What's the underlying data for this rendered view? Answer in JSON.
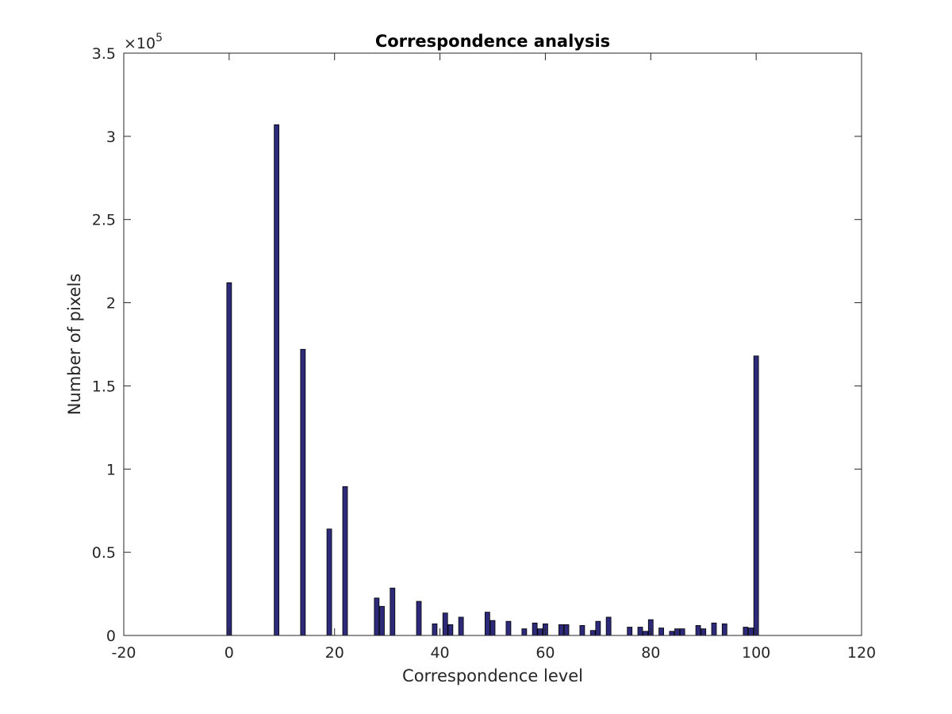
{
  "chart_data": {
    "type": "bar",
    "title": "Correspondence analysis",
    "xlabel": "Correspondence level",
    "ylabel": "Number of pixels",
    "xlim": [
      -20,
      120
    ],
    "ylim": [
      0,
      350000
    ],
    "xticks": [
      -20,
      0,
      20,
      40,
      60,
      80,
      100,
      120
    ],
    "xtick_labels": [
      "-20",
      "0",
      "20",
      "40",
      "60",
      "80",
      "100",
      "120"
    ],
    "yticks": [
      0,
      50000,
      100000,
      150000,
      200000,
      250000,
      300000,
      350000
    ],
    "ytick_labels": [
      "0",
      "0.5",
      "1",
      "1.5",
      "2",
      "2.5",
      "3",
      "3.5"
    ],
    "y_exponent_label": "×10",
    "y_exponent_power": "5",
    "grid": false,
    "bar_color": "#2e2a7a",
    "bar_edge_color": "#000000",
    "bar_width": 0.9,
    "x": [
      0,
      9,
      14,
      19,
      22,
      28,
      29,
      31,
      36,
      39,
      41,
      42,
      44,
      49,
      50,
      53,
      56,
      58,
      59,
      60,
      63,
      64,
      67,
      69,
      70,
      72,
      76,
      78,
      79,
      80,
      82,
      84,
      85,
      86,
      89,
      90,
      92,
      94,
      98,
      99,
      100
    ],
    "values": [
      212000,
      307000,
      172000,
      64000,
      89500,
      22500,
      17500,
      28500,
      20500,
      7000,
      13500,
      6500,
      11000,
      14000,
      9000,
      8500,
      4000,
      7500,
      4000,
      7000,
      6500,
      6500,
      6000,
      3000,
      8500,
      11000,
      5000,
      5000,
      2500,
      9500,
      4500,
      2500,
      4000,
      4000,
      6000,
      4000,
      7500,
      7000,
      5000,
      4500,
      168000
    ]
  }
}
